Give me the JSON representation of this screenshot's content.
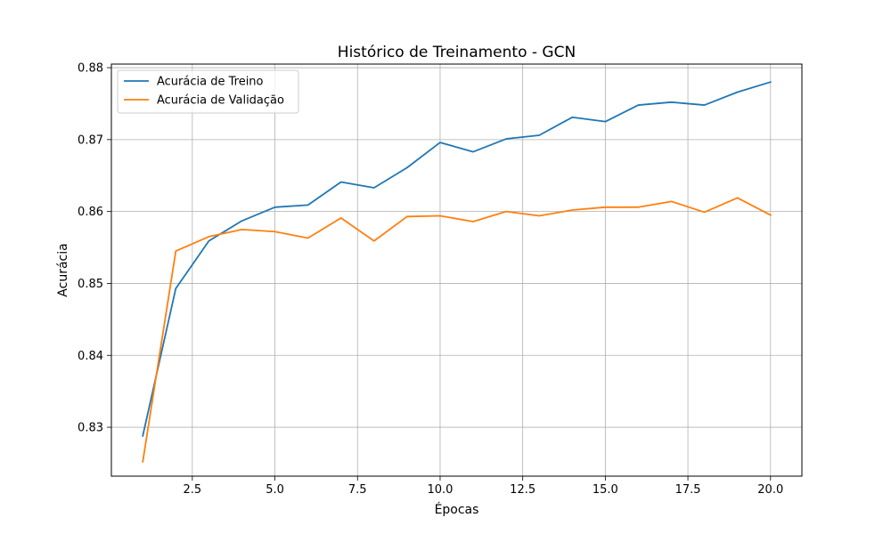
{
  "chart_data": {
    "type": "line",
    "title": "Histórico de Treinamento - GCN",
    "xlabel": "Épocas",
    "ylabel": "Acurácia",
    "xlim": [
      0.05,
      20.95
    ],
    "ylim": [
      0.8232,
      0.8805
    ],
    "xticks": [
      2.5,
      5.0,
      7.5,
      10.0,
      12.5,
      15.0,
      17.5,
      20.0
    ],
    "yticks": [
      0.83,
      0.84,
      0.85,
      0.86,
      0.87,
      0.88
    ],
    "grid": true,
    "legend_position": "upper-left",
    "x": [
      1,
      2,
      3,
      4,
      5,
      6,
      7,
      8,
      9,
      10,
      11,
      12,
      13,
      14,
      15,
      16,
      17,
      18,
      19,
      20
    ],
    "series": [
      {
        "name": "Acurácia de Treino",
        "color": "#1f77b4",
        "values": [
          0.8288,
          0.8493,
          0.8559,
          0.8587,
          0.8606,
          0.8609,
          0.8641,
          0.8633,
          0.8661,
          0.8696,
          0.8683,
          0.8701,
          0.8706,
          0.8731,
          0.8725,
          0.8748,
          0.8752,
          0.8748,
          0.8766,
          0.878
        ]
      },
      {
        "name": "Acurácia de Validação",
        "color": "#ff7f0e",
        "values": [
          0.8252,
          0.8545,
          0.8565,
          0.8575,
          0.8572,
          0.8563,
          0.8591,
          0.8559,
          0.8593,
          0.8594,
          0.8586,
          0.86,
          0.8594,
          0.8602,
          0.8606,
          0.8606,
          0.8614,
          0.8599,
          0.8619,
          0.8595
        ]
      }
    ]
  }
}
